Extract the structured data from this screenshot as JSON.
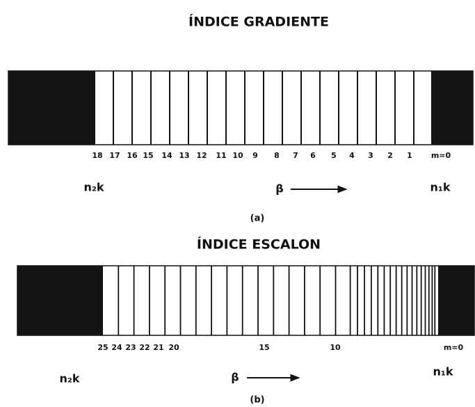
{
  "panel_a": {
    "title": "ÍNDICE GRADIENTE",
    "mode_labels": [
      "18",
      "17",
      "16",
      "15",
      "14",
      "13",
      "12",
      "11",
      "10",
      "9",
      "8",
      "7",
      "6",
      "5",
      "4",
      "3",
      "2",
      "1",
      "m=0"
    ],
    "left_label": "n₂k",
    "beta": "β",
    "right_label": "n₁k",
    "caption": "(a)"
  },
  "panel_b": {
    "title": "ÍNDICE ESCALON",
    "mode_labels": [
      "25",
      "24",
      "23",
      "22",
      "21",
      "20",
      "15",
      "10",
      "m=0"
    ],
    "left_label": "n₂k",
    "beta": "β",
    "right_label": "n₁k",
    "caption": "(b)"
  }
}
